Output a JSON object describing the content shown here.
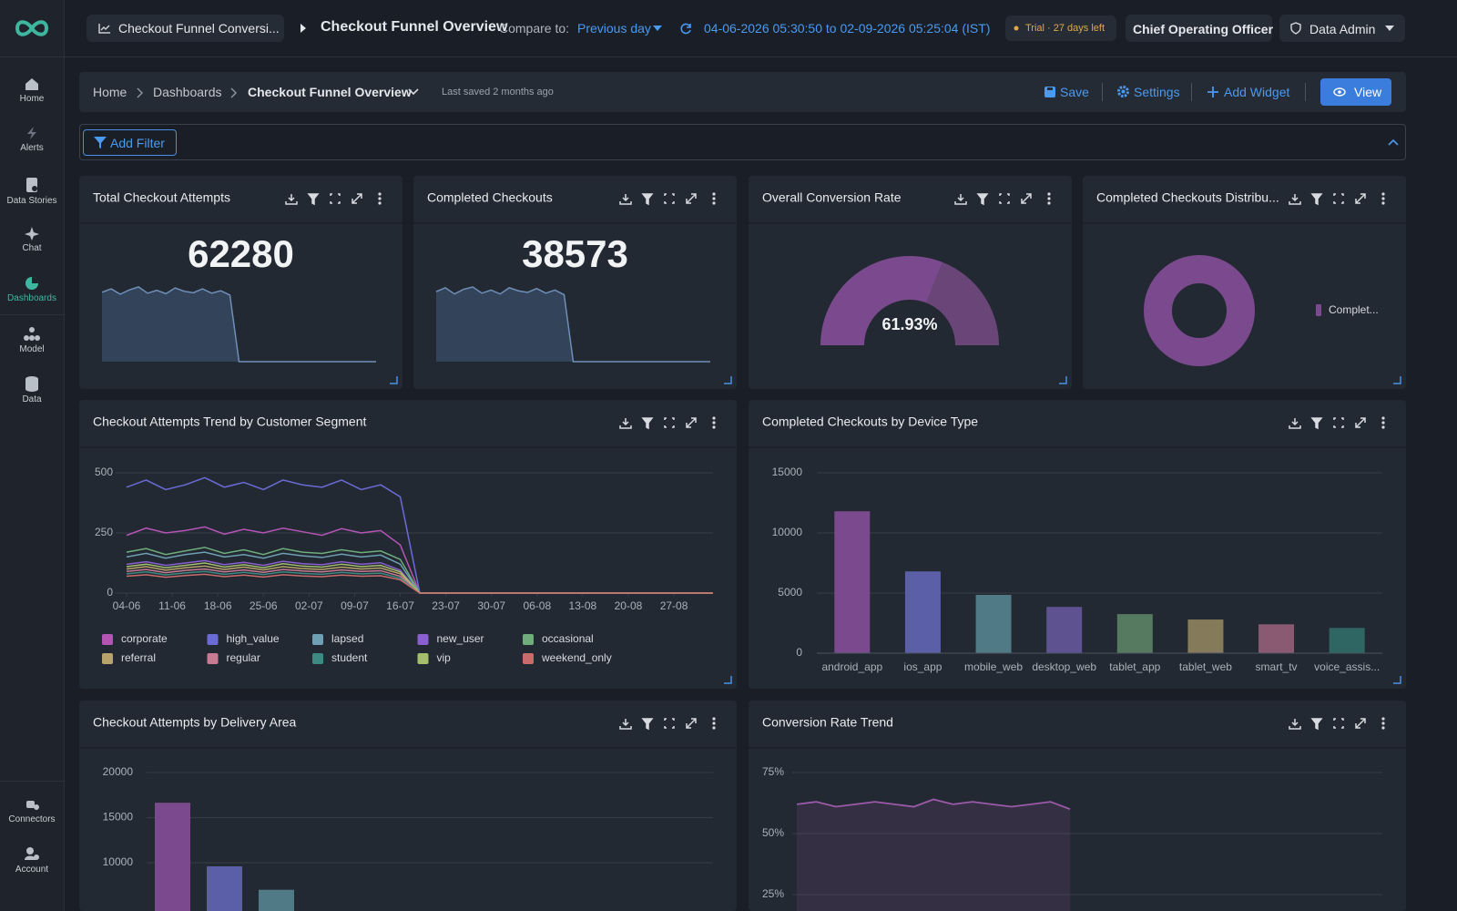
{
  "sidebar": {
    "items": [
      "Home",
      "Alerts",
      "Data Stories",
      "Chat",
      "Dashboards",
      "Model",
      "Data"
    ],
    "bottom": [
      "Connectors",
      "Account"
    ]
  },
  "topbar": {
    "tab": "Checkout Funnel Conversi...",
    "title": "Checkout Funnel Overview",
    "compare_label": "Compare to:",
    "compare_value": "Previous day",
    "date_range": "04-06-2026 05:30:50 to 02-09-2026 05:25:04 (IST)",
    "trial": "Trial · 27 days left",
    "role": "Chief Operating Officer",
    "user": "Data Admin"
  },
  "breadcrumb": {
    "items": [
      "Home",
      "Dashboards",
      "Checkout Funnel Overview"
    ],
    "saved": "Last saved 2 months ago",
    "actions": [
      "Save",
      "Settings",
      "Add Widget",
      "View"
    ]
  },
  "filter": {
    "button": "Add Filter"
  },
  "widgets": [
    {
      "title": "Total Checkout Attempts",
      "chart": {
        "type": "kpi",
        "value": 62280,
        "color": "#6f8fb8",
        "values": [
          1450,
          1520,
          1410,
          1500,
          1560,
          1430,
          1490,
          1420,
          1540,
          1470,
          1440,
          1520,
          1430,
          1480,
          1390,
          0,
          0,
          0,
          0,
          0,
          0,
          0,
          0,
          0,
          0,
          0,
          0,
          0,
          0,
          0,
          0
        ]
      }
    },
    {
      "title": "Completed Checkouts",
      "chart": {
        "type": "kpi",
        "value": 38573,
        "color": "#6f8fb8",
        "values": [
          900,
          950,
          870,
          930,
          960,
          880,
          920,
          870,
          950,
          910,
          890,
          940,
          880,
          920,
          860,
          0,
          0,
          0,
          0,
          0,
          0,
          0,
          0,
          0,
          0,
          0,
          0,
          0,
          0,
          0,
          0
        ]
      }
    },
    {
      "title": "Overall Conversion Rate",
      "chart": {
        "type": "gauge",
        "value": 61.93,
        "value_label": "61.93%",
        "ylim": [
          0,
          100
        ],
        "color": "#7b4a8e"
      }
    },
    {
      "title": "Completed Checkouts Distribu...",
      "chart": {
        "type": "donut",
        "categories": [
          "Complet..."
        ],
        "values": [
          38573
        ],
        "color": "#7b4a8e"
      }
    },
    {
      "title": "Checkout Attempts Trend by Customer Segment",
      "chart": {
        "type": "line",
        "x": [
          0,
          3,
          6,
          9,
          12,
          15,
          18,
          21,
          24,
          27,
          30,
          33,
          36,
          39,
          42,
          45,
          48,
          51,
          54,
          57,
          60,
          63,
          66,
          69,
          72,
          75,
          78,
          81,
          84,
          87,
          90
        ],
        "xlim": [
          0,
          90
        ],
        "xticks": [
          {
            "value": 0,
            "label": "04-06"
          },
          {
            "value": 7,
            "label": "11-06"
          },
          {
            "value": 14,
            "label": "18-06"
          },
          {
            "value": 21,
            "label": "25-06"
          },
          {
            "value": 28,
            "label": "02-07"
          },
          {
            "value": 35,
            "label": "09-07"
          },
          {
            "value": 42,
            "label": "16-07"
          },
          {
            "value": 49,
            "label": "23-07"
          },
          {
            "value": 56,
            "label": "30-07"
          },
          {
            "value": 63,
            "label": "06-08"
          },
          {
            "value": 70,
            "label": "13-08"
          },
          {
            "value": 77,
            "label": "20-08"
          },
          {
            "value": 84,
            "label": "27-08"
          }
        ],
        "ylim": [
          0,
          500
        ],
        "yticks": [
          0,
          250,
          500
        ],
        "grid": true,
        "series": [
          {
            "name": "corporate",
            "color": "#b455b6",
            "values": [
              240,
              270,
              250,
              260,
              275,
              245,
              265,
              250,
              270,
              255,
              240,
              268,
              250,
              260,
              200,
              0,
              0,
              0,
              0,
              0,
              0,
              0,
              0,
              0,
              0,
              0,
              0,
              0,
              0,
              0,
              0
            ]
          },
          {
            "name": "high_value",
            "color": "#6b6bd6",
            "values": [
              440,
              470,
              430,
              450,
              480,
              440,
              460,
              430,
              470,
              450,
              440,
              470,
              430,
              450,
              400,
              0,
              0,
              0,
              0,
              0,
              0,
              0,
              0,
              0,
              0,
              0,
              0,
              0,
              0,
              0,
              0
            ]
          },
          {
            "name": "lapsed",
            "color": "#6f9fb2",
            "values": [
              150,
              165,
              145,
              160,
              170,
              150,
              160,
              145,
              165,
              155,
              148,
              162,
              150,
              158,
              120,
              0,
              0,
              0,
              0,
              0,
              0,
              0,
              0,
              0,
              0,
              0,
              0,
              0,
              0,
              0,
              0
            ]
          },
          {
            "name": "new_user",
            "color": "#8a5fcf",
            "values": [
              120,
              130,
              115,
              125,
              135,
              118,
              128,
              115,
              132,
              122,
              118,
              130,
              120,
              126,
              95,
              0,
              0,
              0,
              0,
              0,
              0,
              0,
              0,
              0,
              0,
              0,
              0,
              0,
              0,
              0,
              0
            ]
          },
          {
            "name": "occasional",
            "color": "#6fae7c",
            "values": [
              170,
              185,
              160,
              175,
              190,
              165,
              180,
              160,
              185,
              170,
              165,
              180,
              168,
              175,
              140,
              0,
              0,
              0,
              0,
              0,
              0,
              0,
              0,
              0,
              0,
              0,
              0,
              0,
              0,
              0,
              0
            ]
          },
          {
            "name": "referral",
            "color": "#b8a36b",
            "values": [
              100,
              110,
              95,
              105,
              112,
              98,
              108,
              96,
              110,
              102,
              98,
              108,
              100,
              104,
              80,
              0,
              0,
              0,
              0,
              0,
              0,
              0,
              0,
              0,
              0,
              0,
              0,
              0,
              0,
              0,
              0
            ]
          },
          {
            "name": "regular",
            "color": "#c87a93",
            "values": [
              90,
              98,
              85,
              94,
              100,
              88,
              96,
              86,
              98,
              92,
              88,
              96,
              90,
              93,
              70,
              0,
              0,
              0,
              0,
              0,
              0,
              0,
              0,
              0,
              0,
              0,
              0,
              0,
              0,
              0,
              0
            ]
          },
          {
            "name": "student",
            "color": "#3c8a82",
            "values": [
              80,
              88,
              76,
              84,
              90,
              78,
              86,
              77,
              88,
              82,
              78,
              86,
              80,
              83,
              62,
              0,
              0,
              0,
              0,
              0,
              0,
              0,
              0,
              0,
              0,
              0,
              0,
              0,
              0,
              0,
              0
            ]
          },
          {
            "name": "vip",
            "color": "#a5be6c",
            "values": [
              110,
              120,
              105,
              115,
              125,
              108,
              118,
              105,
              122,
              112,
              108,
              120,
              110,
              115,
              88,
              0,
              0,
              0,
              0,
              0,
              0,
              0,
              0,
              0,
              0,
              0,
              0,
              0,
              0,
              0,
              0
            ]
          },
          {
            "name": "weekend_only",
            "color": "#c96b6b",
            "values": [
              70,
              76,
              66,
              73,
              78,
              68,
              75,
              67,
              76,
              71,
              68,
              75,
              70,
              72,
              55,
              0,
              0,
              0,
              0,
              0,
              0,
              0,
              0,
              0,
              0,
              0,
              0,
              0,
              0,
              0,
              0
            ]
          }
        ]
      }
    },
    {
      "title": "Completed Checkouts by Device Type",
      "chart": {
        "type": "bar",
        "categories": [
          "android_app",
          "ios_app",
          "mobile_web",
          "desktop_web",
          "tablet_app",
          "tablet_web",
          "smart_tv",
          "voice_assis..."
        ],
        "values": [
          11800,
          6800,
          4850,
          3850,
          3250,
          2800,
          2400,
          2100
        ],
        "colors": [
          "#7b4a8e",
          "#5a5fa8",
          "#4f7a86",
          "#5e5290",
          "#557a5f",
          "#857b5a",
          "#8a5a72",
          "#2f6664"
        ],
        "ylim": [
          0,
          15000
        ],
        "yticks": [
          0,
          5000,
          10000,
          15000
        ],
        "grid": true
      }
    },
    {
      "title": "Checkout Attempts by Delivery Area",
      "chart": {
        "type": "bar",
        "categories": [
          null,
          null,
          null
        ],
        "values": [
          16650,
          9600,
          7000
        ],
        "colors": [
          "#7b4a8e",
          "#5a5fa8",
          "#4f7a86"
        ],
        "ylim": [
          0,
          20000
        ],
        "yticks": [
          10000,
          15000,
          20000
        ],
        "grid": true
      }
    },
    {
      "title": "Conversion Rate Trend",
      "chart": {
        "type": "area",
        "x": [
          0,
          3,
          6,
          9,
          12,
          15,
          18,
          21,
          24,
          27,
          30,
          33,
          36,
          39,
          42,
          45,
          48,
          51,
          54,
          57,
          60,
          63,
          66,
          69,
          72,
          75,
          78,
          81,
          84,
          87,
          90
        ],
        "xlim": [
          0,
          90
        ],
        "values": [
          62,
          63,
          61,
          62,
          63,
          62,
          61,
          64,
          62,
          63,
          62,
          61,
          62,
          63,
          60,
          null,
          null,
          null,
          null,
          null,
          null,
          null,
          null,
          null,
          null,
          null,
          null,
          null,
          null,
          null,
          null
        ],
        "color": "#9b5aa8",
        "ylim": [
          0,
          75
        ],
        "yticks": [
          {
            "value": 25,
            "label": "25%"
          },
          {
            "value": 50,
            "label": "50%"
          },
          {
            "value": 75,
            "label": "75%"
          }
        ],
        "grid": true
      }
    }
  ]
}
